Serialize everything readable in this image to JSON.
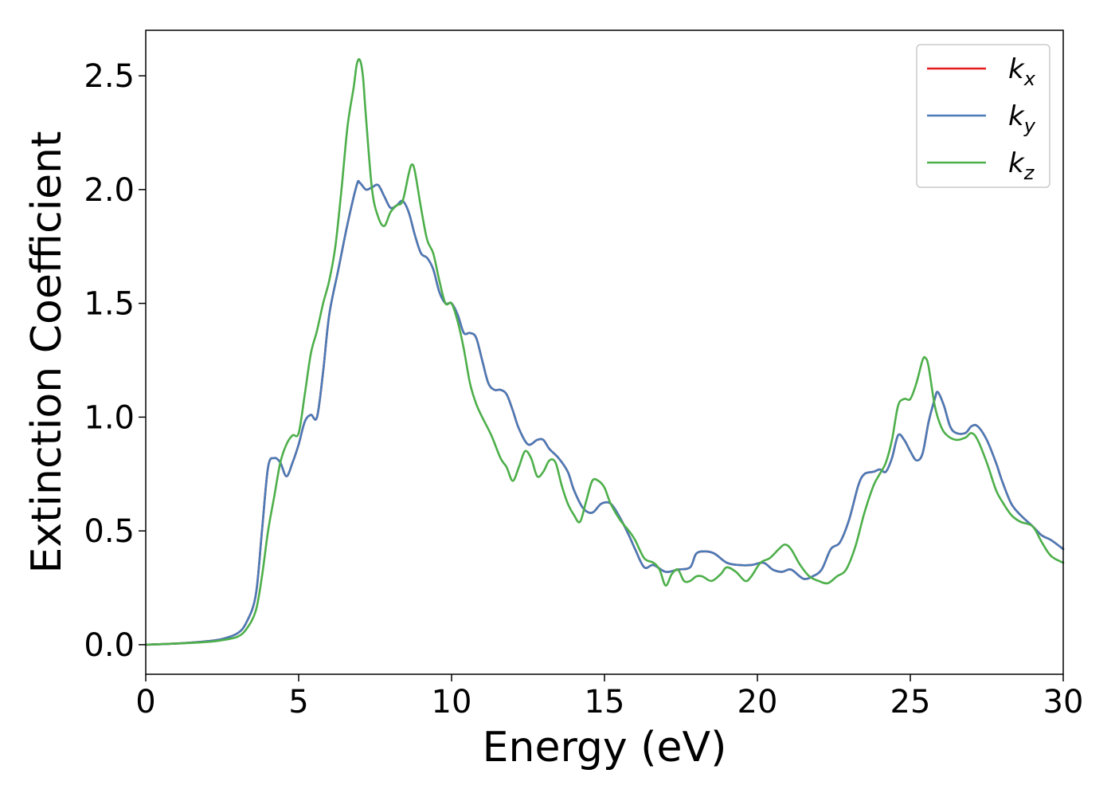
{
  "chart_data": {
    "type": "line",
    "title": "",
    "xlabel": "Energy (eV)",
    "ylabel": "Extinction Coefficient",
    "xlim": [
      0,
      30
    ],
    "ylim": [
      -0.13,
      2.7
    ],
    "xticks": [
      0,
      5,
      10,
      15,
      20,
      25,
      30
    ],
    "xtick_labels": [
      "0",
      "5",
      "10",
      "15",
      "20",
      "25",
      "30"
    ],
    "yticks": [
      0.0,
      0.5,
      1.0,
      1.5,
      2.0,
      2.5
    ],
    "ytick_labels": [
      "0.0",
      "0.5",
      "1.0",
      "1.5",
      "2.0",
      "2.5"
    ],
    "grid": false,
    "legend_position": "top-right",
    "series": [
      {
        "name": "k_x",
        "legend_main": "k",
        "legend_sub": "x",
        "color": "#e41a1c",
        "x": [
          0,
          1,
          2,
          2.5,
          3,
          3.3,
          3.6,
          3.8,
          4.0,
          4.2,
          4.4,
          4.6,
          4.8,
          5.0,
          5.2,
          5.4,
          5.6,
          5.8,
          6.0,
          6.3,
          6.6,
          6.9,
          7.0,
          7.2,
          7.4,
          7.6,
          7.8,
          8.0,
          8.2,
          8.4,
          8.6,
          8.8,
          9.0,
          9.2,
          9.4,
          9.6,
          9.8,
          10.0,
          10.2,
          10.4,
          10.6,
          10.8,
          11.0,
          11.2,
          11.4,
          11.6,
          11.8,
          12.0,
          12.2,
          12.5,
          12.8,
          13.0,
          13.2,
          13.5,
          13.8,
          14.0,
          14.3,
          14.6,
          14.9,
          15.2,
          15.5,
          15.8,
          16.0,
          16.3,
          16.6,
          17.0,
          17.4,
          17.8,
          18.0,
          18.3,
          18.6,
          19.0,
          19.4,
          19.8,
          20.2,
          20.5,
          20.8,
          21.1,
          21.5,
          21.8,
          22.1,
          22.4,
          22.7,
          23.0,
          23.3,
          23.5,
          23.8,
          24.0,
          24.2,
          24.4,
          24.6,
          24.8,
          25.0,
          25.2,
          25.4,
          25.6,
          25.8,
          25.9,
          26.1,
          26.3,
          26.5,
          26.8,
          27.0,
          27.2,
          27.5,
          27.8,
          28.0,
          28.3,
          28.6,
          29.0,
          29.3,
          29.6,
          30.0
        ],
        "values": [
          0.0,
          0.005,
          0.015,
          0.025,
          0.05,
          0.1,
          0.22,
          0.5,
          0.78,
          0.82,
          0.8,
          0.74,
          0.8,
          0.88,
          0.98,
          1.01,
          1.0,
          1.2,
          1.45,
          1.65,
          1.85,
          2.02,
          2.03,
          2.0,
          2.01,
          2.02,
          1.97,
          1.92,
          1.93,
          1.95,
          1.9,
          1.8,
          1.72,
          1.7,
          1.65,
          1.55,
          1.5,
          1.5,
          1.45,
          1.37,
          1.37,
          1.35,
          1.25,
          1.15,
          1.12,
          1.12,
          1.1,
          1.03,
          0.95,
          0.88,
          0.9,
          0.9,
          0.86,
          0.82,
          0.76,
          0.68,
          0.6,
          0.58,
          0.62,
          0.62,
          0.56,
          0.48,
          0.42,
          0.34,
          0.35,
          0.32,
          0.33,
          0.34,
          0.4,
          0.41,
          0.4,
          0.36,
          0.35,
          0.35,
          0.36,
          0.33,
          0.32,
          0.33,
          0.29,
          0.3,
          0.33,
          0.42,
          0.45,
          0.55,
          0.7,
          0.75,
          0.76,
          0.77,
          0.76,
          0.82,
          0.92,
          0.9,
          0.85,
          0.81,
          0.84,
          0.98,
          1.08,
          1.11,
          1.05,
          0.96,
          0.93,
          0.93,
          0.96,
          0.96,
          0.9,
          0.8,
          0.72,
          0.62,
          0.57,
          0.52,
          0.48,
          0.46,
          0.42
        ]
      },
      {
        "name": "k_y",
        "legend_main": "k",
        "legend_sub": "y",
        "color": "#4a7bb7",
        "x": [
          0,
          1,
          2,
          2.5,
          3,
          3.3,
          3.6,
          3.8,
          4.0,
          4.2,
          4.4,
          4.6,
          4.8,
          5.0,
          5.2,
          5.4,
          5.6,
          5.8,
          6.0,
          6.3,
          6.6,
          6.9,
          7.0,
          7.2,
          7.4,
          7.6,
          7.8,
          8.0,
          8.2,
          8.4,
          8.6,
          8.8,
          9.0,
          9.2,
          9.4,
          9.6,
          9.8,
          10.0,
          10.2,
          10.4,
          10.6,
          10.8,
          11.0,
          11.2,
          11.4,
          11.6,
          11.8,
          12.0,
          12.2,
          12.5,
          12.8,
          13.0,
          13.2,
          13.5,
          13.8,
          14.0,
          14.3,
          14.6,
          14.9,
          15.2,
          15.5,
          15.8,
          16.0,
          16.3,
          16.6,
          17.0,
          17.4,
          17.8,
          18.0,
          18.3,
          18.6,
          19.0,
          19.4,
          19.8,
          20.2,
          20.5,
          20.8,
          21.1,
          21.5,
          21.8,
          22.1,
          22.4,
          22.7,
          23.0,
          23.3,
          23.5,
          23.8,
          24.0,
          24.2,
          24.4,
          24.6,
          24.8,
          25.0,
          25.2,
          25.4,
          25.6,
          25.8,
          25.9,
          26.1,
          26.3,
          26.5,
          26.8,
          27.0,
          27.2,
          27.5,
          27.8,
          28.0,
          28.3,
          28.6,
          29.0,
          29.3,
          29.6,
          30.0
        ],
        "values": [
          0.0,
          0.005,
          0.015,
          0.025,
          0.05,
          0.1,
          0.22,
          0.5,
          0.78,
          0.82,
          0.8,
          0.74,
          0.8,
          0.88,
          0.98,
          1.01,
          1.0,
          1.2,
          1.45,
          1.65,
          1.85,
          2.02,
          2.03,
          2.0,
          2.01,
          2.02,
          1.97,
          1.92,
          1.93,
          1.95,
          1.9,
          1.8,
          1.72,
          1.7,
          1.65,
          1.55,
          1.5,
          1.5,
          1.45,
          1.37,
          1.37,
          1.35,
          1.25,
          1.15,
          1.12,
          1.12,
          1.1,
          1.03,
          0.95,
          0.88,
          0.9,
          0.9,
          0.86,
          0.82,
          0.76,
          0.68,
          0.6,
          0.58,
          0.62,
          0.62,
          0.56,
          0.48,
          0.42,
          0.34,
          0.35,
          0.32,
          0.33,
          0.34,
          0.4,
          0.41,
          0.4,
          0.36,
          0.35,
          0.35,
          0.36,
          0.33,
          0.32,
          0.33,
          0.29,
          0.3,
          0.33,
          0.42,
          0.45,
          0.55,
          0.7,
          0.75,
          0.76,
          0.77,
          0.76,
          0.82,
          0.92,
          0.9,
          0.85,
          0.81,
          0.84,
          0.98,
          1.08,
          1.11,
          1.05,
          0.96,
          0.93,
          0.93,
          0.96,
          0.96,
          0.9,
          0.8,
          0.72,
          0.62,
          0.57,
          0.52,
          0.48,
          0.46,
          0.42
        ]
      },
      {
        "name": "k_z",
        "legend_main": "k",
        "legend_sub": "z",
        "color": "#4daf4a",
        "x": [
          0,
          1,
          2,
          2.5,
          3,
          3.3,
          3.6,
          3.8,
          4.0,
          4.2,
          4.4,
          4.6,
          4.8,
          5.0,
          5.2,
          5.4,
          5.6,
          5.8,
          6.0,
          6.2,
          6.4,
          6.6,
          6.8,
          6.9,
          7.0,
          7.1,
          7.2,
          7.4,
          7.6,
          7.8,
          8.0,
          8.2,
          8.4,
          8.6,
          8.7,
          8.8,
          9.0,
          9.2,
          9.4,
          9.6,
          9.8,
          10.0,
          10.2,
          10.4,
          10.6,
          10.8,
          11.0,
          11.3,
          11.6,
          11.8,
          12.0,
          12.2,
          12.4,
          12.6,
          12.8,
          13.0,
          13.2,
          13.4,
          13.6,
          13.8,
          14.0,
          14.2,
          14.4,
          14.6,
          14.8,
          15.0,
          15.2,
          15.5,
          15.8,
          16.0,
          16.3,
          16.6,
          16.8,
          17.0,
          17.2,
          17.4,
          17.6,
          17.8,
          18.0,
          18.2,
          18.5,
          18.8,
          19.0,
          19.3,
          19.6,
          19.8,
          20.1,
          20.4,
          20.7,
          20.9,
          21.1,
          21.4,
          21.7,
          22.0,
          22.3,
          22.6,
          22.9,
          23.2,
          23.5,
          23.8,
          24.0,
          24.2,
          24.4,
          24.6,
          24.8,
          25.0,
          25.2,
          25.4,
          25.5,
          25.6,
          25.8,
          26.0,
          26.2,
          26.5,
          26.8,
          27.0,
          27.2,
          27.5,
          27.8,
          28.0,
          28.3,
          28.6,
          29.0,
          29.3,
          29.6,
          30.0
        ],
        "values": [
          0.0,
          0.005,
          0.012,
          0.02,
          0.035,
          0.07,
          0.15,
          0.3,
          0.5,
          0.65,
          0.8,
          0.88,
          0.92,
          0.93,
          1.1,
          1.28,
          1.38,
          1.5,
          1.6,
          1.75,
          2.0,
          2.28,
          2.45,
          2.55,
          2.57,
          2.5,
          2.32,
          2.0,
          1.88,
          1.84,
          1.9,
          1.93,
          1.95,
          2.07,
          2.11,
          2.08,
          1.92,
          1.78,
          1.72,
          1.6,
          1.5,
          1.5,
          1.42,
          1.3,
          1.15,
          1.06,
          1.0,
          0.92,
          0.82,
          0.78,
          0.72,
          0.78,
          0.85,
          0.82,
          0.74,
          0.76,
          0.81,
          0.8,
          0.7,
          0.62,
          0.57,
          0.54,
          0.63,
          0.72,
          0.72,
          0.69,
          0.62,
          0.55,
          0.5,
          0.46,
          0.38,
          0.36,
          0.33,
          0.26,
          0.31,
          0.33,
          0.28,
          0.28,
          0.3,
          0.3,
          0.28,
          0.31,
          0.34,
          0.32,
          0.28,
          0.3,
          0.36,
          0.38,
          0.42,
          0.44,
          0.42,
          0.35,
          0.3,
          0.28,
          0.27,
          0.3,
          0.33,
          0.43,
          0.58,
          0.7,
          0.75,
          0.8,
          0.9,
          1.05,
          1.08,
          1.08,
          1.15,
          1.25,
          1.26,
          1.22,
          1.05,
          0.96,
          0.92,
          0.9,
          0.91,
          0.93,
          0.9,
          0.8,
          0.68,
          0.63,
          0.57,
          0.54,
          0.52,
          0.45,
          0.39,
          0.36
        ]
      }
    ]
  }
}
